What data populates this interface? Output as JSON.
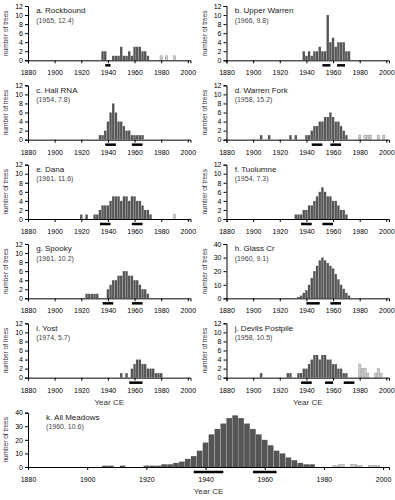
{
  "chart_data": [
    {
      "type": "bar",
      "title": "a. Rockbound",
      "subtitle": "(1965, 12.4)",
      "ylabel": "number of trees",
      "xlim": [
        1880,
        2002
      ],
      "xticks": [
        1880,
        1900,
        1920,
        1940,
        1960,
        1980,
        2000
      ],
      "ylim": [
        0,
        12
      ],
      "yticks": [
        0,
        2,
        4,
        6,
        8,
        10,
        12
      ],
      "periods": [
        [
          1938,
          1942
        ]
      ],
      "series": [
        {
          "color": "#555555",
          "x": [
            1936,
            1938,
            1944,
            1946,
            1948,
            1950,
            1952,
            1954,
            1956,
            1958,
            1960,
            1962,
            1964,
            1966,
            1968,
            1970
          ],
          "values": [
            2,
            2,
            1,
            1,
            1,
            3,
            1,
            1,
            2,
            1,
            3,
            3,
            3,
            2,
            2,
            1
          ]
        },
        {
          "color": "#cccccc",
          "x": [
            1980,
            1984,
            1990
          ],
          "values": [
            1,
            1,
            1
          ]
        }
      ]
    },
    {
      "type": "bar",
      "title": "b. Upper Warren",
      "subtitle": "(1966, 9.8)",
      "ylabel": "number of trees",
      "xlim": [
        1880,
        2002
      ],
      "xticks": [
        1880,
        1900,
        1920,
        1940,
        1960,
        1980,
        2000
      ],
      "ylim": [
        0,
        12
      ],
      "yticks": [
        0,
        2,
        4,
        6,
        8,
        10,
        12
      ],
      "periods": [
        [
          1952,
          1958
        ],
        [
          1963,
          1969
        ]
      ],
      "series": [
        {
          "color": "#555555",
          "x": [
            1938,
            1940,
            1942,
            1944,
            1946,
            1948,
            1950,
            1952,
            1954,
            1956,
            1958,
            1960,
            1962,
            1964,
            1966,
            1968,
            1970,
            1972
          ],
          "values": [
            2,
            1,
            2,
            1,
            2,
            2,
            3,
            2,
            2,
            10,
            4,
            5,
            3,
            4,
            4,
            4,
            2,
            2
          ]
        }
      ]
    },
    {
      "type": "bar",
      "title": "c. Hall RNA",
      "subtitle": "(1954, 7.8)",
      "ylabel": "number of trees",
      "xlim": [
        1880,
        2002
      ],
      "xticks": [
        1880,
        1900,
        1920,
        1940,
        1960,
        1980,
        2000
      ],
      "ylim": [
        0,
        12
      ],
      "yticks": [
        0,
        2,
        4,
        6,
        8,
        10,
        12
      ],
      "periods": [
        [
          1938,
          1946
        ],
        [
          1958,
          1966
        ]
      ],
      "series": [
        {
          "color": "#555555",
          "x": [
            1934,
            1936,
            1938,
            1940,
            1942,
            1944,
            1946,
            1948,
            1950,
            1952,
            1954,
            1956,
            1958,
            1960,
            1962,
            1964,
            1966
          ],
          "values": [
            1,
            1,
            2,
            4,
            6,
            8,
            6,
            4,
            4,
            3,
            2,
            2,
            1,
            1,
            1,
            1,
            1
          ]
        }
      ]
    },
    {
      "type": "bar",
      "title": "d. Warren Fork",
      "subtitle": "(1958, 15.2)",
      "ylabel": "number of trees",
      "xlim": [
        1880,
        2002
      ],
      "xticks": [
        1880,
        1900,
        1920,
        1940,
        1960,
        1980,
        2000
      ],
      "ylim": [
        0,
        12
      ],
      "yticks": [
        0,
        2,
        4,
        6,
        8,
        10,
        12
      ],
      "periods": [
        [
          1944,
          1952
        ],
        [
          1958,
          1966
        ]
      ],
      "series": [
        {
          "color": "#555555",
          "x": [
            1906,
            1912,
            1928,
            1932,
            1940,
            1942,
            1944,
            1946,
            1948,
            1950,
            1952,
            1954,
            1956,
            1958,
            1960,
            1962,
            1964,
            1966,
            1968,
            1970
          ],
          "values": [
            1,
            1,
            1,
            1,
            1,
            1,
            2,
            3,
            3,
            4,
            4,
            5,
            5,
            6,
            5,
            4,
            4,
            3,
            2,
            1
          ]
        },
        {
          "color": "#cccccc",
          "x": [
            1980,
            1984,
            1986,
            1988,
            1994,
            1998
          ],
          "values": [
            1,
            1,
            1,
            1,
            1,
            1
          ]
        }
      ]
    },
    {
      "type": "bar",
      "title": "e. Dana",
      "subtitle": "(1961, 11.6)",
      "ylabel": "number of trees",
      "xlim": [
        1880,
        2002
      ],
      "xticks": [
        1880,
        1900,
        1920,
        1940,
        1960,
        1980,
        2000
      ],
      "ylim": [
        0,
        12
      ],
      "yticks": [
        0,
        2,
        4,
        6,
        8,
        10,
        12
      ],
      "periods": [
        [
          1934,
          1942
        ],
        [
          1958,
          1966
        ]
      ],
      "series": [
        {
          "color": "#555555",
          "x": [
            1920,
            1924,
            1930,
            1932,
            1934,
            1936,
            1938,
            1940,
            1942,
            1944,
            1946,
            1948,
            1950,
            1952,
            1954,
            1956,
            1958,
            1960,
            1962,
            1964,
            1966,
            1968,
            1970,
            1972
          ],
          "values": [
            1,
            1,
            1,
            1,
            2,
            3,
            3,
            3,
            4,
            5,
            5,
            5,
            4,
            5,
            5,
            4,
            5,
            5,
            4,
            4,
            3,
            2,
            2,
            1
          ]
        },
        {
          "color": "#cccccc",
          "x": [
            1990
          ],
          "values": [
            1
          ]
        }
      ]
    },
    {
      "type": "bar",
      "title": "f. Tuolumne",
      "subtitle": "(1954, 7.3)",
      "ylabel": "number of trees",
      "xlim": [
        1880,
        2002
      ],
      "xticks": [
        1880,
        1900,
        1920,
        1940,
        1960,
        1980,
        2000
      ],
      "ylim": [
        0,
        12
      ],
      "yticks": [
        0,
        2,
        4,
        6,
        8,
        10,
        12
      ],
      "periods": [
        [
          1936,
          1944
        ],
        [
          1952,
          1960
        ]
      ],
      "series": [
        {
          "color": "#555555",
          "x": [
            1932,
            1934,
            1936,
            1938,
            1940,
            1942,
            1944,
            1946,
            1948,
            1950,
            1952,
            1954,
            1956,
            1958,
            1960,
            1962,
            1964,
            1966,
            1968,
            1970
          ],
          "values": [
            1,
            1,
            1,
            2,
            2,
            3,
            3,
            4,
            5,
            6,
            7,
            6,
            5,
            5,
            4,
            4,
            3,
            2,
            2,
            1
          ]
        }
      ]
    },
    {
      "type": "bar",
      "title": "g. Spooky",
      "subtitle": "(1961, 10.2)",
      "ylabel": "number of trees",
      "xlim": [
        1880,
        2002
      ],
      "xticks": [
        1880,
        1900,
        1920,
        1940,
        1960,
        1980,
        2000
      ],
      "ylim": [
        0,
        12
      ],
      "yticks": [
        0,
        2,
        4,
        6,
        8,
        10,
        12
      ],
      "periods": [
        [
          1936,
          1944
        ],
        [
          1958,
          1966
        ]
      ],
      "series": [
        {
          "color": "#555555",
          "x": [
            1924,
            1926,
            1928,
            1930,
            1932,
            1940,
            1942,
            1944,
            1946,
            1948,
            1950,
            1952,
            1954,
            1956,
            1958,
            1960,
            1962,
            1964,
            1966,
            1968,
            1970
          ],
          "values": [
            1,
            1,
            1,
            1,
            1,
            2,
            3,
            4,
            4,
            5,
            5,
            6,
            6,
            5,
            5,
            4,
            4,
            3,
            2,
            2,
            1
          ]
        }
      ]
    },
    {
      "type": "bar",
      "title": "h. Glass Cr",
      "subtitle": "(1960, 9.1)",
      "ylabel": "number of trees",
      "xlim": [
        1880,
        2002
      ],
      "xticks": [
        1880,
        1900,
        1920,
        1940,
        1960,
        1980,
        2000
      ],
      "ylim": [
        0,
        40
      ],
      "yticks": [
        0,
        10,
        20,
        30,
        40
      ],
      "periods": [
        [
          1940,
          1950
        ],
        [
          1958,
          1966
        ]
      ],
      "series": [
        {
          "color": "#555555",
          "x": [
            1934,
            1936,
            1938,
            1940,
            1942,
            1944,
            1946,
            1948,
            1950,
            1952,
            1954,
            1956,
            1958,
            1960,
            1962,
            1964,
            1966,
            1968,
            1970,
            1972
          ],
          "values": [
            1,
            2,
            4,
            6,
            10,
            15,
            20,
            24,
            28,
            30,
            28,
            26,
            24,
            22,
            18,
            14,
            10,
            7,
            4,
            2
          ]
        }
      ]
    },
    {
      "type": "bar",
      "title": "i. Yost",
      "subtitle": "(1974, 5.7)",
      "ylabel": "number of trees",
      "xlabel": "Year CE",
      "xlim": [
        1880,
        2002
      ],
      "xticks": [
        1880,
        1900,
        1920,
        1940,
        1960,
        1980,
        2000
      ],
      "ylim": [
        0,
        12
      ],
      "yticks": [
        0,
        2,
        4,
        6,
        8,
        10,
        12
      ],
      "periods": [
        [
          1956,
          1966
        ]
      ],
      "series": [
        {
          "color": "#555555",
          "x": [
            1950,
            1954,
            1958,
            1960,
            1962,
            1964,
            1966,
            1968,
            1970,
            1972,
            1974,
            1976,
            1978,
            1980
          ],
          "values": [
            1,
            1,
            2,
            3,
            4,
            4,
            3,
            3,
            2,
            2,
            2,
            1,
            1,
            1
          ]
        }
      ]
    },
    {
      "type": "bar",
      "title": "j. Devils Postpile",
      "subtitle": "(1958, 10.5)",
      "ylabel": "number of trees",
      "xlabel": "Year CE",
      "xlim": [
        1880,
        2002
      ],
      "xticks": [
        1880,
        1900,
        1920,
        1940,
        1960,
        1980,
        2000
      ],
      "ylim": [
        0,
        12
      ],
      "yticks": [
        0,
        2,
        4,
        6,
        8,
        10,
        12
      ],
      "periods": [
        [
          1936,
          1944
        ],
        [
          1954,
          1960
        ],
        [
          1968,
          1976
        ]
      ],
      "series": [
        {
          "color": "#555555",
          "x": [
            1906,
            1926,
            1928,
            1934,
            1936,
            1938,
            1940,
            1942,
            1944,
            1946,
            1948,
            1950,
            1952,
            1954,
            1956,
            1958,
            1960,
            1962,
            1964,
            1966,
            1968,
            1970
          ],
          "values": [
            1,
            1,
            1,
            1,
            1,
            2,
            2,
            3,
            4,
            5,
            5,
            4,
            5,
            5,
            4,
            4,
            3,
            3,
            2,
            2,
            1,
            1
          ]
        },
        {
          "color": "#cccccc",
          "x": [
            1980,
            1982,
            1984,
            1986,
            1992,
            1994,
            1996
          ],
          "values": [
            3,
            2,
            2,
            1,
            1,
            2,
            1
          ]
        }
      ]
    },
    {
      "type": "bar",
      "title": "k. All Meadows",
      "subtitle": "(1960, 10.6)",
      "ylabel": "number of trees",
      "xlabel": "Year CE",
      "xlim": [
        1880,
        2002
      ],
      "xticks": [
        1880,
        1900,
        1920,
        1940,
        1960,
        1980,
        2000
      ],
      "ylim": [
        0,
        40
      ],
      "yticks": [
        0,
        10,
        20,
        30,
        40
      ],
      "periods": [
        [
          1936,
          1946
        ],
        [
          1956,
          1964
        ]
      ],
      "series": [
        {
          "color": "#555555",
          "x": [
            1906,
            1908,
            1912,
            1920,
            1922,
            1924,
            1926,
            1928,
            1930,
            1932,
            1934,
            1936,
            1938,
            1940,
            1942,
            1944,
            1946,
            1948,
            1950,
            1952,
            1954,
            1956,
            1958,
            1960,
            1962,
            1964,
            1966,
            1968,
            1970,
            1972,
            1974,
            1976
          ],
          "values": [
            1,
            1,
            1,
            1,
            1,
            1,
            2,
            2,
            3,
            4,
            6,
            8,
            12,
            18,
            24,
            28,
            32,
            36,
            38,
            36,
            32,
            28,
            24,
            20,
            16,
            12,
            10,
            7,
            5,
            3,
            2,
            2
          ]
        },
        {
          "color": "#cccccc",
          "x": [
            1984,
            1986,
            1990,
            1992,
            1996,
            1998
          ],
          "values": [
            1,
            2,
            2,
            1,
            1,
            1
          ]
        }
      ]
    }
  ]
}
